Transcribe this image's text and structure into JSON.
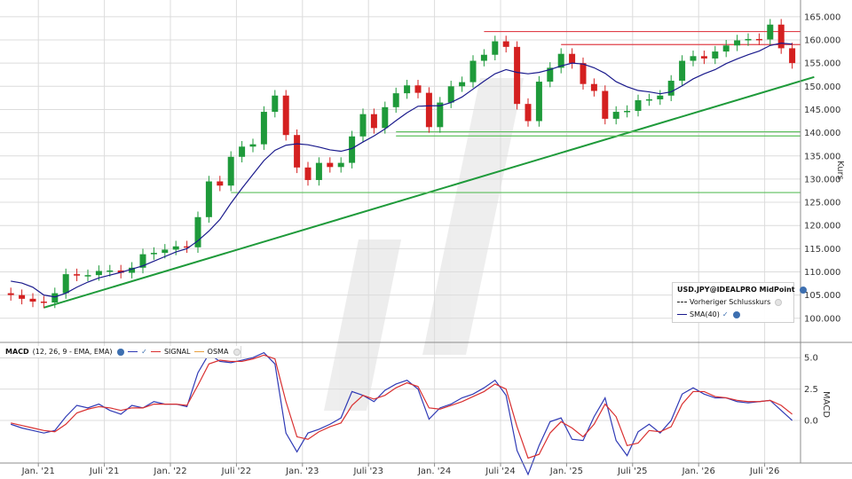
{
  "chart_data": [
    {
      "type": "candlestick",
      "title": "",
      "ylabel": "Kurs",
      "ylim": [
        96000,
        167000
      ],
      "yticks": [
        "100.000",
        "105.000",
        "110.000",
        "115.000",
        "120.000",
        "125.000",
        "130.000",
        "135.000",
        "140.000",
        "145.000",
        "150.000",
        "155.000",
        "160.000",
        "165.000"
      ],
      "x_categories": [
        "Jan. '21",
        "Juli '21",
        "Jan. '22",
        "Juli '22",
        "Jan. '23",
        "Juli '23",
        "Jan. '24",
        "Juli '24",
        "Jan. '25",
        "Juli '25",
        "Jan. '26",
        "Juli '26"
      ],
      "x_range": [
        "2020-10",
        "2026-11"
      ],
      "grid": true,
      "legend_position": "bottom-right",
      "series": [
        {
          "name": "USD.JPY@IDEALPRO MidPoint",
          "kind": "price",
          "x": [
            "2020-10",
            "2020-11",
            "2020-12",
            "2021-01",
            "2021-02",
            "2021-03",
            "2021-04",
            "2021-05",
            "2021-06",
            "2021-07",
            "2021-08",
            "2021-09",
            "2021-10",
            "2021-11",
            "2021-12",
            "2022-01",
            "2022-02",
            "2022-03",
            "2022-04",
            "2022-05",
            "2022-06",
            "2022-07",
            "2022-08",
            "2022-09",
            "2022-10",
            "2022-11",
            "2022-12",
            "2023-01",
            "2023-02",
            "2023-03",
            "2023-04",
            "2023-05",
            "2023-06",
            "2023-07",
            "2023-08",
            "2023-09",
            "2023-10",
            "2023-11",
            "2023-12",
            "2024-01",
            "2024-02",
            "2024-03",
            "2024-04",
            "2024-05",
            "2024-06",
            "2024-07",
            "2024-08",
            "2024-09",
            "2024-10",
            "2024-11",
            "2024-12",
            "2025-01",
            "2025-02",
            "2025-03",
            "2025-04",
            "2025-05",
            "2025-06",
            "2025-07",
            "2025-08",
            "2025-09",
            "2025-10",
            "2025-11",
            "2025-12",
            "2026-01",
            "2026-02",
            "2026-03",
            "2026-04",
            "2026-05",
            "2026-06",
            "2026-07",
            "2026-08",
            "2026-09"
          ],
          "values": [
            105000,
            104200,
            103600,
            103400,
            105400,
            109500,
            109200,
            109300,
            110200,
            110300,
            109800,
            110900,
            113800,
            114100,
            114800,
            115500,
            115300,
            121800,
            129500,
            128600,
            134800,
            137000,
            137500,
            144500,
            148000,
            139500,
            132500,
            129800,
            133500,
            132600,
            133500,
            139200,
            144000,
            141000,
            145500,
            148500,
            150200,
            148600,
            141200,
            146500,
            150000,
            150900,
            155500,
            156800,
            159700,
            158500,
            146200,
            142500,
            151000,
            154000,
            157000,
            155000,
            150500,
            149000,
            143000,
            144500,
            144700,
            147000,
            147200,
            148000,
            151200,
            155500,
            156500,
            156000,
            157500,
            158800,
            159900,
            160200,
            160100,
            163300,
            158200,
            155000
          ]
        },
        {
          "name": "SMA(40)",
          "kind": "line",
          "color": "#1a1a8c",
          "x": [
            "2020-10",
            "2020-11",
            "2020-12",
            "2021-01",
            "2021-02",
            "2021-03",
            "2021-04",
            "2021-05",
            "2021-06",
            "2021-07",
            "2021-08",
            "2021-09",
            "2021-10",
            "2021-11",
            "2021-12",
            "2022-01",
            "2022-02",
            "2022-03",
            "2022-04",
            "2022-05",
            "2022-06",
            "2022-07",
            "2022-08",
            "2022-09",
            "2022-10",
            "2022-11",
            "2022-12",
            "2023-01",
            "2023-02",
            "2023-03",
            "2023-04",
            "2023-05",
            "2023-06",
            "2023-07",
            "2023-08",
            "2023-09",
            "2023-10",
            "2023-11",
            "2023-12",
            "2024-01",
            "2024-02",
            "2024-03",
            "2024-04",
            "2024-05",
            "2024-06",
            "2024-07",
            "2024-08",
            "2024-09",
            "2024-10",
            "2024-11",
            "2024-12",
            "2025-01",
            "2025-02",
            "2025-03",
            "2025-04",
            "2025-05",
            "2025-06",
            "2025-07",
            "2025-08",
            "2025-09",
            "2025-10",
            "2025-11",
            "2025-12",
            "2026-01",
            "2026-02",
            "2026-03",
            "2026-04",
            "2026-05",
            "2026-06",
            "2026-07",
            "2026-08",
            "2026-09"
          ],
          "values": [
            108000,
            107600,
            106700,
            105000,
            104600,
            105400,
            106700,
            107800,
            108700,
            109300,
            109900,
            110600,
            111300,
            112300,
            113300,
            114300,
            115000,
            116700,
            118800,
            121300,
            124800,
            128000,
            131000,
            134000,
            136200,
            137300,
            137600,
            137400,
            136900,
            136300,
            136000,
            136600,
            138000,
            139300,
            140800,
            142600,
            144300,
            145700,
            145800,
            145800,
            146500,
            147700,
            149400,
            151100,
            152700,
            153600,
            153000,
            152700,
            153000,
            153600,
            154400,
            155000,
            154800,
            154000,
            152800,
            151000,
            149900,
            149100,
            148800,
            148400,
            148800,
            150100,
            151600,
            152700,
            153600,
            154900,
            155900,
            156800,
            157600,
            158800,
            159300,
            159100
          ]
        },
        {
          "name": "Vorheriger Schlusskurs",
          "kind": "dashed-line",
          "values": [
            155000
          ]
        }
      ],
      "annotations": [
        {
          "kind": "trendline",
          "color": "#1e9a3a",
          "points": [
            [
              "2021-01",
              102300
            ],
            [
              "2026-11",
              152000
            ]
          ]
        },
        {
          "kind": "hline",
          "color": "#e0404a",
          "value": 161800,
          "from": "2024-05",
          "to": "2026-11"
        },
        {
          "kind": "hline",
          "color": "#e0404a",
          "value": 159000,
          "from": "2024-12",
          "to": "2026-11"
        },
        {
          "kind": "hline",
          "color": "#5cbf5c",
          "value": 140200,
          "from": "2023-09",
          "to": "2026-11"
        },
        {
          "kind": "hline",
          "color": "#5cbf5c",
          "value": 139300,
          "from": "2023-09",
          "to": "2026-11"
        },
        {
          "kind": "hline",
          "color": "#5cbf5c",
          "value": 127100,
          "from": "2022-06",
          "to": "2026-11"
        }
      ]
    },
    {
      "type": "line",
      "title": "",
      "ylabel": "MACD",
      "ylim": [
        -5.5,
        6.2
      ],
      "yticks": [
        "0.0",
        "2.5",
        "5.0"
      ],
      "legend": "MACD (12, 26, 9 - EMA, EMA)",
      "series": [
        {
          "name": "MACD",
          "color": "#2f3ab5",
          "values": [
            -0.3,
            -0.6,
            -0.8,
            -1.0,
            -0.8,
            0.3,
            1.2,
            1.0,
            1.3,
            0.8,
            0.5,
            1.2,
            1.0,
            1.5,
            1.3,
            1.3,
            1.1,
            3.8,
            5.3,
            4.7,
            4.6,
            4.8,
            5.0,
            5.4,
            4.5,
            -1.0,
            -2.5,
            -1.0,
            -0.7,
            -0.3,
            0.2,
            2.3,
            2.0,
            1.5,
            2.4,
            2.9,
            3.2,
            2.5,
            0.1,
            1.0,
            1.3,
            1.8,
            2.1,
            2.6,
            3.2,
            2.0,
            -2.4,
            -4.3,
            -2.0,
            -0.1,
            0.2,
            -1.5,
            -1.6,
            0.3,
            1.8,
            -1.6,
            -2.8,
            -0.9,
            -0.3,
            -1.0,
            0.0,
            2.1,
            2.6,
            2.1,
            1.8,
            1.8,
            1.5,
            1.4,
            1.5,
            1.6,
            0.8,
            0.0
          ]
        },
        {
          "name": "SIGNAL",
          "color": "#d93030",
          "values": [
            -0.2,
            -0.4,
            -0.6,
            -0.8,
            -0.9,
            -0.3,
            0.6,
            0.9,
            1.1,
            1.0,
            0.8,
            1.0,
            1.0,
            1.3,
            1.3,
            1.3,
            1.2,
            2.8,
            4.5,
            4.8,
            4.7,
            4.7,
            4.9,
            5.2,
            4.9,
            1.5,
            -1.3,
            -1.5,
            -0.9,
            -0.5,
            -0.2,
            1.2,
            2.0,
            1.7,
            2.0,
            2.6,
            3.0,
            2.7,
            1.0,
            0.9,
            1.2,
            1.5,
            1.9,
            2.3,
            2.9,
            2.5,
            -0.5,
            -3.0,
            -2.7,
            -1.0,
            -0.1,
            -0.6,
            -1.3,
            -0.3,
            1.3,
            0.3,
            -2.0,
            -1.8,
            -0.8,
            -0.9,
            -0.5,
            1.3,
            2.3,
            2.3,
            1.9,
            1.8,
            1.6,
            1.5,
            1.5,
            1.6,
            1.2,
            0.5
          ]
        },
        {
          "name": "OSMA",
          "color": "#e8a040",
          "values": []
        }
      ]
    }
  ],
  "macd_legend": {
    "title": "MACD",
    "params": "(12, 26, 9 - EMA, EMA)",
    "signal": "SIGNAL",
    "osma": "OSMA",
    "check": "✓"
  },
  "legend": {
    "title": "USD.JPY@IDEALPRO MidPoint",
    "prev_close": "Vorheriger Schlusskurs",
    "sma": "SMA(40)",
    "check": "✓"
  },
  "colors": {
    "candle_up": "#1e9a3a",
    "candle_down": "#d42020",
    "trendline": "#1e9a3a",
    "resistance": "#e0404a",
    "support": "#5cbf5c",
    "sma": "#1a1a8c",
    "macd": "#2f3ab5",
    "signal": "#d93030",
    "osma": "#e8a040",
    "grid": "#dcdcdc"
  }
}
